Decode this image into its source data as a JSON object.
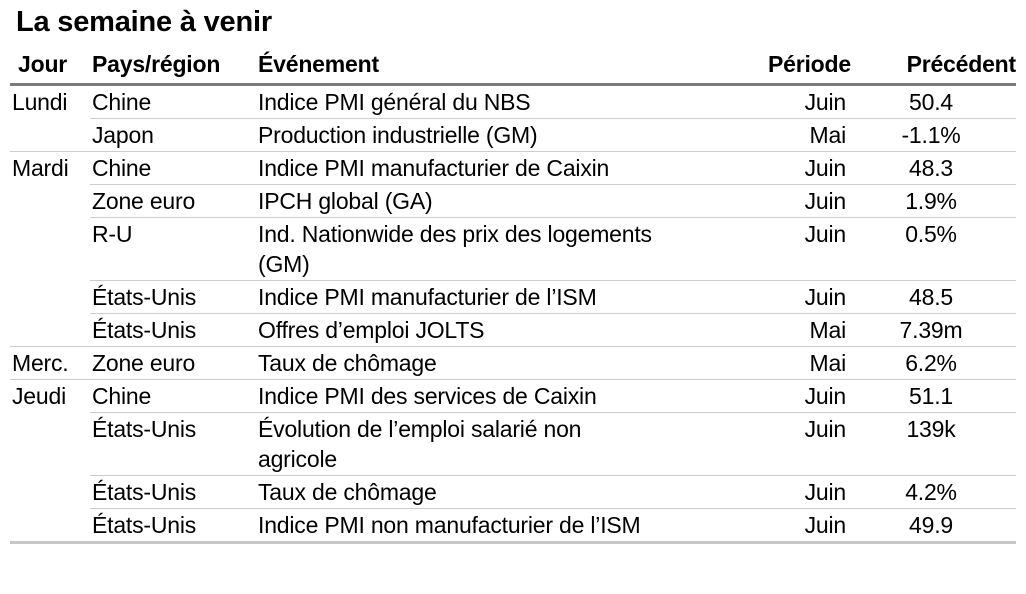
{
  "colors": {
    "background": "#ffffff",
    "text": "#000000",
    "header_rule": "#7a7a7a",
    "row_rule": "#cccccc",
    "bottom_rule": "#c6c6c6"
  },
  "chart_data": {
    "type": "table",
    "title": "La semaine à venir",
    "columns": [
      "Jour",
      "Pays/région",
      "Événement",
      "Période",
      "Précédent"
    ],
    "rows": [
      {
        "day": "Lundi",
        "region": "Chine",
        "event": "Indice PMI général du NBS",
        "period": "Juin",
        "previous": "50.4",
        "separator": "none"
      },
      {
        "day": "",
        "region": "Japon",
        "event": "Production industrielle (GM)",
        "period": "Mai",
        "previous": "-1.1%",
        "separator": "indented"
      },
      {
        "day": "Mardi",
        "region": "Chine",
        "event": "Indice PMI manufacturier de Caixin",
        "period": "Juin",
        "previous": "48.3",
        "separator": "full"
      },
      {
        "day": "",
        "region": "Zone euro",
        "event": "IPCH global (GA)",
        "period": "Juin",
        "previous": "1.9%",
        "separator": "indented"
      },
      {
        "day": "",
        "region": "R-U",
        "event": "Ind. Nationwide des prix des logements\n(GM)",
        "period": "Juin",
        "previous": "0.5%",
        "separator": "indented"
      },
      {
        "day": "",
        "region": "États-Unis",
        "event": "Indice PMI manufacturier de l’ISM",
        "period": "Juin",
        "previous": "48.5",
        "separator": "indented"
      },
      {
        "day": "",
        "region": "États-Unis",
        "event": "Offres d’emploi JOLTS",
        "period": "Mai",
        "previous": "7.39m",
        "separator": "indented"
      },
      {
        "day": "Merc.",
        "region": "Zone euro",
        "event": "Taux de chômage",
        "period": "Mai",
        "previous": "6.2%",
        "separator": "full"
      },
      {
        "day": "Jeudi",
        "region": "Chine",
        "event": "Indice PMI des services de Caixin",
        "period": "Juin",
        "previous": "51.1",
        "separator": "full"
      },
      {
        "day": "",
        "region": "États-Unis",
        "event": "Évolution de l’emploi salarié non\nagricole",
        "period": "Juin",
        "previous": "139k",
        "separator": "indented"
      },
      {
        "day": "",
        "region": "États-Unis",
        "event": "Taux de chômage",
        "period": "Juin",
        "previous": "4.2%",
        "separator": "indented"
      },
      {
        "day": "",
        "region": "États-Unis",
        "event": "Indice PMI non manufacturier de l’ISM",
        "period": "Juin",
        "previous": "49.9",
        "separator": "indented"
      }
    ]
  }
}
